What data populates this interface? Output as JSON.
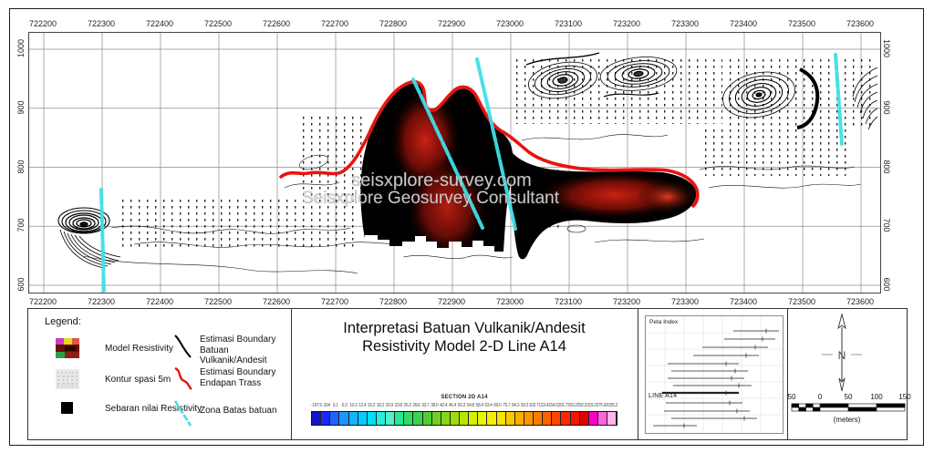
{
  "plot": {
    "watermark_line1": "seisxplore-survey.com",
    "watermark_line2": "Seisxplore Geosurvey Consultant"
  },
  "legend": {
    "title": "Legend:",
    "items": [
      {
        "icon": "model-resistivity-swatch",
        "label": "Model Resistivity"
      },
      {
        "icon": "contour-swatch",
        "label": "Kontur spasi 5m"
      },
      {
        "icon": "resistivity-point-square",
        "label": "Sebaran nilai Resistivity"
      },
      {
        "icon": "black-boundary-line",
        "label": "Estimasi Boundary Batuan Vulkanik/Andesit"
      },
      {
        "icon": "red-boundary-line",
        "label": "Estimasi Boundary Endapan Trass"
      },
      {
        "icon": "cyan-zone-line",
        "label": "Zona Batas batuan"
      }
    ]
  },
  "title_block": {
    "line1": "Interpretasi Batuan Vulkanik/Andesit",
    "line2": "Resistivity Model 2-D Line A14"
  },
  "peta_index": {
    "title": "Peta Index",
    "line_label": "LINE A14",
    "lines": [
      {
        "x1": 96,
        "x2": 146,
        "y": 16,
        "bold": false
      },
      {
        "x1": 86,
        "x2": 142,
        "y": 25,
        "bold": false
      },
      {
        "x1": 62,
        "x2": 134,
        "y": 34,
        "bold": false
      },
      {
        "x1": 52,
        "x2": 124,
        "y": 43,
        "bold": false
      },
      {
        "x1": 24,
        "x2": 102,
        "y": 52,
        "bold": false
      },
      {
        "x1": 28,
        "x2": 112,
        "y": 60,
        "bold": false
      },
      {
        "x1": 24,
        "x2": 108,
        "y": 68,
        "bold": false
      },
      {
        "x1": 30,
        "x2": 116,
        "y": 76,
        "bold": false
      },
      {
        "x1": 18,
        "x2": 102,
        "y": 84,
        "bold": true
      },
      {
        "x1": 22,
        "x2": 106,
        "y": 95,
        "bold": false
      },
      {
        "x1": 20,
        "x2": 114,
        "y": 104,
        "bold": false
      },
      {
        "x1": 28,
        "x2": 122,
        "y": 112,
        "bold": false
      },
      {
        "x1": 8,
        "x2": 56,
        "y": 120,
        "bold": false
      }
    ]
  },
  "north_scale": {
    "north_label": "N",
    "scale_labels": [
      "50",
      "0",
      "50",
      "100",
      "150"
    ],
    "unit_label": "(meters)"
  },
  "colors": {
    "boundary_red": "#e81410",
    "zone_cyan": "#3fe0e8",
    "body_black": "#000000",
    "body_red_core": "#c41e10"
  },
  "chart_data": {
    "type": "heatmap",
    "title": "Interpretasi Batuan Vulkanik/Andesit",
    "subtitle": "Resistivity Model 2-D Line A14",
    "x_ticks": [
      722200,
      722300,
      722400,
      722500,
      722600,
      722700,
      722800,
      722900,
      723000,
      723100,
      723200,
      723300,
      723400,
      723500,
      723600
    ],
    "y_ticks": [
      1000,
      900,
      800,
      700,
      600
    ],
    "x_range": [
      722150,
      723660
    ],
    "y_range": [
      600,
      1010
    ],
    "grid": true,
    "annotations": [
      "seisxplore-survey.com",
      "Seisxplore Geosurvey Consultant"
    ],
    "interpreted_features": [
      "dense contour cluster near x=722280, y=700",
      "volcanic/andesite high-resistivity body (black/red) from x=722800 to x=723300 between y=600 and y=950",
      "red trass deposit boundary line along top of body from x=722640 to x=723300",
      "cyan rock-boundary zone lines near x=722320, x=722900, x=722950, x=723560",
      "contour clusters near x=723050-723200 at y=950 and x=723450-723600 at y=930"
    ],
    "colorbar": {
      "title": "SECTION 2D A14",
      "tick_labels": [
        "-197.5",
        "-104",
        "0.1",
        "6.3",
        "10.3",
        "12.4",
        "15.2",
        "18.2",
        "20.9",
        "23.8",
        "26.3",
        "29.6",
        "33.7",
        "38.0",
        "42.4",
        "46.4",
        "50.3",
        "54.8",
        "58.4",
        "63.4",
        "69.0",
        "75.7",
        "84.3",
        "93.3",
        "102.7",
        "123.4",
        "154.5",
        "201.7",
        "263.2",
        "292.2",
        "319.2",
        "375.9",
        "2035.2"
      ],
      "colors": [
        "#1414c8",
        "#1e28ff",
        "#1e64ff",
        "#1e96ff",
        "#14b4ff",
        "#00ccff",
        "#00e0fa",
        "#28eee0",
        "#50f0c8",
        "#28e896",
        "#32dc64",
        "#3cd24b",
        "#55cd32",
        "#6ed223",
        "#87d714",
        "#a0dc0a",
        "#b9e600",
        "#d2f000",
        "#e6f500",
        "#f5f000",
        "#fae100",
        "#fac800",
        "#faaf00",
        "#fa9600",
        "#fa7d00",
        "#fa6400",
        "#fa4600",
        "#fa2800",
        "#f51400",
        "#e60000",
        "#fa00c8",
        "#ff64dc",
        "#ffb4ec"
      ]
    }
  }
}
